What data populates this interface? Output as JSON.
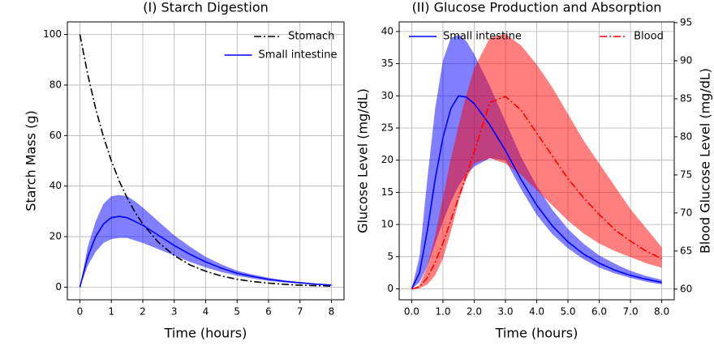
{
  "chart_data": [
    {
      "type": "line",
      "title": "(I) Starch Digestion",
      "x_label": "Time (hours)",
      "y_label": "Starch Mass (g)",
      "x": [
        0,
        0.25,
        0.5,
        0.75,
        1,
        1.25,
        1.5,
        1.75,
        2,
        2.5,
        3,
        3.5,
        4,
        4.5,
        5,
        5.5,
        6,
        6.5,
        7,
        7.5,
        8
      ],
      "xlim": [
        -0.4,
        8.4
      ],
      "ylim": [
        -5,
        105
      ],
      "xticks": [
        0,
        1,
        2,
        3,
        4,
        5,
        6,
        7,
        8
      ],
      "yticks": [
        0,
        20,
        40,
        60,
        80,
        100
      ],
      "grid": true,
      "legend": "upper right",
      "series": [
        {
          "name": "Stomach",
          "color": "#000000",
          "style": "dashdot",
          "values": [
            100,
            84.1,
            70.7,
            59.5,
            50,
            42.0,
            35.4,
            29.7,
            25,
            17.7,
            12.5,
            8.8,
            6.3,
            4.4,
            3.1,
            2.2,
            1.6,
            1.1,
            0.8,
            0.6,
            0.4
          ]
        },
        {
          "name": "Small intestine",
          "color": "#0000ff",
          "style": "solid",
          "values": [
            0,
            12,
            20,
            25,
            27.5,
            28,
            27.5,
            26,
            24.5,
            20.5,
            16.5,
            13,
            10,
            7.5,
            5.5,
            4.2,
            3.1,
            2.3,
            1.7,
            1.2,
            0.8
          ],
          "upper": [
            0,
            16,
            26,
            33,
            36,
            36.5,
            36,
            34,
            31.5,
            26,
            20.5,
            16,
            12,
            9,
            6.5,
            5,
            3.7,
            2.7,
            2,
            1.4,
            1
          ],
          "lower": [
            0,
            8.5,
            14,
            17.5,
            19,
            19.5,
            19.5,
            18.5,
            17.5,
            15,
            12.5,
            10,
            7.8,
            6,
            4.5,
            3.4,
            2.5,
            1.9,
            1.4,
            1,
            0.6
          ]
        }
      ]
    },
    {
      "type": "line",
      "title": "(II) Glucose Production and Absorption",
      "x_label": "Time (hours)",
      "y_label": "Glucose Level (mg/dL)",
      "y_label_color": "#0000ff",
      "y2_label": "Blood Glucose Level (mg/dL)",
      "y2_label_color": "#ff0000",
      "x": [
        0,
        0.25,
        0.5,
        0.75,
        1,
        1.25,
        1.5,
        1.75,
        2,
        2.5,
        3,
        3.5,
        4,
        4.5,
        5,
        5.5,
        6,
        6.5,
        7,
        7.5,
        8
      ],
      "xlim": [
        -0.4,
        8.4
      ],
      "ylim": [
        -1.7,
        41.5
      ],
      "y2lim": [
        58.6,
        95.1
      ],
      "xticks": [
        {
          "value": 0,
          "label": "0.0"
        },
        {
          "value": 1,
          "label": "1.0"
        },
        {
          "value": 2,
          "label": "2.0"
        },
        {
          "value": 3,
          "label": "3.0"
        },
        {
          "value": 4,
          "label": "4.0"
        },
        {
          "value": 5,
          "label": "5.0"
        },
        {
          "value": 6,
          "label": "6.0"
        },
        {
          "value": 7,
          "label": "7.0"
        },
        {
          "value": 8,
          "label": "8.0"
        }
      ],
      "yticks": [
        0,
        5,
        10,
        15,
        20,
        25,
        30,
        35,
        40
      ],
      "y2ticks": [
        60,
        65,
        70,
        75,
        80,
        85,
        90,
        95
      ],
      "grid": true,
      "series": [
        {
          "name": "Small intestine",
          "color": "#0000ff",
          "style": "solid",
          "legend": "upper left",
          "values": [
            0,
            2.5,
            9,
            17,
            23.5,
            28,
            30,
            29.8,
            28.8,
            25.5,
            21.5,
            17,
            13,
            9.8,
            7.3,
            5.4,
            4.0,
            2.9,
            2.1,
            1.5,
            1.0
          ],
          "upper": [
            0,
            5,
            17,
            28,
            35.5,
            39,
            39.5,
            38.5,
            36.5,
            31.5,
            26,
            20.5,
            16,
            12.3,
            9.3,
            7,
            5.2,
            3.9,
            2.8,
            2,
            1.4
          ],
          "lower": [
            0,
            1,
            3.5,
            7,
            10.5,
            13.5,
            16,
            17.8,
            19,
            20.3,
            20.0,
            15.5,
            11.5,
            8.5,
            6.3,
            4.6,
            3.3,
            2.4,
            1.7,
            1.1,
            0.7
          ]
        },
        {
          "name": "Blood",
          "color": "#ff0000",
          "style": "dashdot",
          "legend": "upper right",
          "axis": "y2",
          "values": [
            60,
            60.3,
            61.5,
            63.5,
            66,
            69,
            72,
            75,
            78,
            84.5,
            85.3,
            83.5,
            80.5,
            77.5,
            74.5,
            72,
            69.8,
            67.8,
            66.3,
            65,
            64
          ],
          "upper": [
            60,
            60.5,
            63,
            67,
            72,
            77,
            81.5,
            85.5,
            89,
            93,
            93.5,
            92,
            89.5,
            86.5,
            83,
            79.5,
            76.5,
            73.5,
            70.5,
            68,
            65.5
          ],
          "lower": [
            60,
            60.1,
            60.6,
            61.8,
            64,
            67.5,
            71.5,
            74.5,
            76.5,
            77.2,
            76.5,
            75,
            73,
            71,
            69,
            67.3,
            66,
            65,
            64.2,
            63.4,
            62.8
          ]
        }
      ]
    }
  ]
}
